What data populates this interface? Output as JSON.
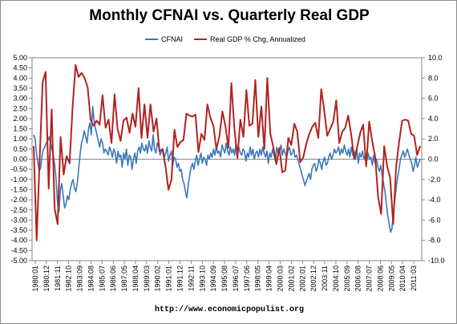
{
  "title": "Monthly CFNAI vs. Quarterly Real GDP",
  "source": "http://www.economicpopulist.org",
  "legend": [
    {
      "name": "CFNAI",
      "color": "#3a78bb"
    },
    {
      "name": "Real GDP % Chg, Annualized",
      "color": "#b22222"
    }
  ],
  "chart_data": {
    "type": "line",
    "title": "Monthly CFNAI vs. Quarterly Real GDP",
    "x_ticks": [
      "1980:01",
      "1980:12",
      "1981:11",
      "1982:10",
      "1983:09",
      "1984:08",
      "1985:07",
      "1986:06",
      "1987:05",
      "1988:04",
      "1989:03",
      "1990:02",
      "1991:01",
      "1991:12",
      "1992:11",
      "1993:10",
      "1994:09",
      "1995:08",
      "1996:07",
      "1997:06",
      "1998:05",
      "1999:04",
      "2000:03",
      "2001:02",
      "2002:01",
      "2002:12",
      "2003:11",
      "2004:10",
      "2005:09",
      "2006:08",
      "2007:07",
      "2008:06",
      "2009:05",
      "2010:04",
      "2011:03"
    ],
    "y_left": {
      "min": -5,
      "max": 5,
      "step": 0.5,
      "ticks": [
        "5.00",
        "4.50",
        "4.00",
        "3.50",
        "3.00",
        "2.50",
        "2.00",
        "1.50",
        "1.00",
        "0.50",
        "0.00",
        "-0.50",
        "-1.00",
        "-1.50",
        "-2.00",
        "-2.50",
        "-3.00",
        "-3.50",
        "-4.00",
        "-4.50",
        "-5.00"
      ]
    },
    "y_right": {
      "min": -10,
      "max": 10,
      "step": 2,
      "ticks": [
        "10.0",
        "8.0",
        "6.0",
        "4.0",
        "2.0",
        "0.0",
        "-2.0",
        "-4.0",
        "-6.0",
        "-8.0",
        "-10.0"
      ]
    },
    "series": [
      {
        "name": "CFNAI",
        "axis": "left",
        "color": "#3a78bb",
        "values": [
          1.2,
          1.0,
          0.3,
          -0.2,
          -0.6,
          -0.4,
          0.2,
          0.5,
          0.6,
          0.8,
          0.9,
          1.1,
          0.8,
          0.5,
          0.2,
          -0.3,
          -1.0,
          -2.2,
          -2.6,
          -1.5,
          -1.2,
          -1.8,
          -2.4,
          -2.2,
          -1.8,
          -2.0,
          -1.5,
          -1.2,
          -1.0,
          -1.4,
          -1.6,
          -1.2,
          -0.5,
          0.2,
          0.8,
          1.0,
          1.4,
          1.1,
          0.8,
          1.5,
          1.8,
          1.2,
          2.6,
          1.9,
          1.5,
          1.2,
          0.9,
          0.6,
          1.0,
          0.8,
          0.3,
          0.5,
          0.4,
          0.2,
          0.6,
          0.4,
          0.1,
          0.5,
          0.3,
          -0.2,
          0.4,
          0.1,
          0.2,
          -0.4,
          0.3,
          0.0,
          0.5,
          -0.3,
          0.2,
          0.1,
          -0.5,
          0.0,
          0.3,
          -0.2,
          0.4,
          0.6,
          0.3,
          0.8,
          0.5,
          0.4,
          0.7,
          0.3,
          0.9,
          0.6,
          0.4,
          1.2,
          0.5,
          0.3,
          0.8,
          0.6,
          0.2,
          0.4,
          0.5,
          0.1,
          0.3,
          0.6,
          -0.1,
          0.2,
          0.4,
          -0.3,
          0.1,
          0.0,
          -0.4,
          -0.2,
          -0.6,
          -0.5,
          -1.0,
          -1.2,
          -1.6,
          -1.9,
          -1.3,
          -0.8,
          -0.4,
          -0.2,
          -0.5,
          -0.1,
          0.2,
          -0.3,
          0.0,
          0.3,
          -0.2,
          0.1,
          0.0,
          -0.3,
          0.2,
          0.0,
          0.3,
          0.1,
          0.5,
          0.2,
          0.6,
          0.3,
          0.4,
          0.1,
          0.7,
          0.5,
          0.3,
          0.8,
          0.4,
          0.2,
          0.6,
          0.3,
          0.5,
          0.2,
          0.8,
          0.4,
          0.6,
          0.3,
          0.2,
          0.5,
          0.4,
          -0.1,
          0.3,
          0.1,
          0.6,
          0.2,
          0.5,
          0.0,
          0.3,
          0.4,
          0.1,
          0.5,
          0.2,
          0.6,
          0.3,
          0.1,
          0.4,
          -0.2,
          0.3,
          0.1,
          0.5,
          0.2,
          -0.1,
          0.6,
          0.3,
          0.4,
          0.7,
          0.2,
          0.5,
          0.3,
          0.1,
          0.4,
          0.6,
          0.2,
          0.3,
          0.5,
          0.1,
          0.2,
          0.0,
          -0.3,
          -0.5,
          -0.8,
          -1.0,
          -1.3,
          -1.1,
          -0.9,
          -0.7,
          -1.0,
          -0.5,
          -0.3,
          -0.2,
          -0.6,
          -0.4,
          0.0,
          -0.2,
          -0.5,
          -0.1,
          0.1,
          -0.3,
          -0.2,
          0.1,
          0.3,
          0.0,
          0.2,
          0.5,
          0.3,
          0.4,
          0.6,
          0.2,
          0.5,
          0.3,
          0.7,
          0.4,
          0.2,
          0.5,
          0.1,
          0.6,
          0.2,
          0.4,
          0.0,
          0.5,
          -0.2,
          0.3,
          0.1,
          0.4,
          0.0,
          0.2,
          -0.1,
          0.3,
          0.0,
          0.1,
          -0.3,
          0.2,
          -0.2,
          0.0,
          -0.4,
          -0.6,
          -0.3,
          -0.8,
          -1.2,
          -1.6,
          -2.2,
          -2.8,
          -3.2,
          -3.6,
          -3.4,
          -2.6,
          -2.0,
          -1.4,
          -0.9,
          -0.5,
          0.0,
          0.2,
          0.4,
          0.1,
          0.3,
          0.5,
          0.2,
          0.0,
          -0.2,
          -0.6,
          -0.3,
          0.1,
          -0.4,
          -0.2,
          0.0
        ]
      },
      {
        "name": "Real GDP % Chg, Annualized",
        "axis": "right",
        "color": "#b22222",
        "values": [
          1.3,
          -8.0,
          0.0,
          7.6,
          8.6,
          -2.9,
          4.9,
          -4.9,
          -6.4,
          2.2,
          -1.5,
          0.3,
          -0.4,
          5.2,
          9.3,
          8.1,
          8.5,
          8.0,
          7.1,
          3.9,
          3.3,
          3.8,
          3.4,
          6.3,
          3.1,
          3.9,
          1.6,
          6.4,
          3.0,
          1.8,
          3.8,
          4.1,
          2.6,
          4.5,
          3.2,
          7.0,
          2.1,
          5.4,
          2.1,
          5.4,
          2.7,
          4.0,
          0.8,
          1.0,
          -0.7,
          -3.0,
          -2.0,
          2.9,
          1.2,
          1.7,
          1.9,
          4.5,
          4.3,
          4.2,
          4.4,
          0.7,
          2.5,
          1.9,
          5.4,
          4.1,
          3.3,
          1.0,
          2.3,
          4.7,
          3.3,
          1.1,
          7.5,
          3.1,
          0.1,
          3.9,
          2.2,
          6.8,
          3.3,
          3.5,
          7.8,
          2.2,
          5.2,
          1.0,
          8.0,
          2.5,
          1.2,
          -0.5,
          1.1,
          -1.3,
          -1.1,
          2.1,
          1.4,
          3.5,
          2.7,
          -0.3,
          0.2,
          1.5,
          2.5,
          3.2,
          3.6,
          2.1,
          6.9,
          4.8,
          2.3,
          3.0,
          3.7,
          5.8,
          1.6,
          2.7,
          3.1,
          4.3,
          2.4,
          0.0,
          1.2,
          2.6,
          3.4,
          -0.7,
          3.7,
          1.8,
          0.2,
          -3.8,
          -5.4,
          1.3,
          -0.7,
          -1.8,
          -6.4,
          -0.7,
          1.7,
          3.8,
          3.9,
          3.8,
          2.5,
          2.3,
          0.4,
          1.3
        ]
      }
    ]
  }
}
